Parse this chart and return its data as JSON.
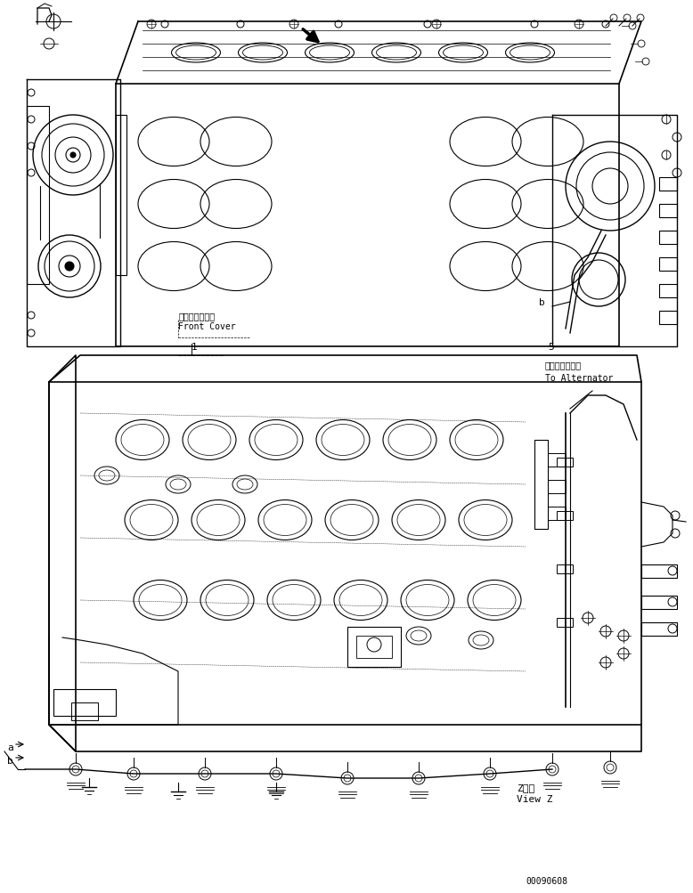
{
  "title": "",
  "background_color": "#ffffff",
  "line_color": "#000000",
  "fig_width": 7.78,
  "fig_height": 10.04,
  "dpi": 100,
  "labels": {
    "front_cover_jp": "フロントカバー",
    "front_cover_en": "Front Cover",
    "label_1": "1",
    "label_5": "5",
    "label_a": "a",
    "label_b": "b",
    "to_alternator_jp": "オルタネータヘ",
    "to_alternator_en": "To Alternator",
    "view_z_jp": "Z　視",
    "view_z_en": "View Z",
    "part_number": "00090608"
  }
}
